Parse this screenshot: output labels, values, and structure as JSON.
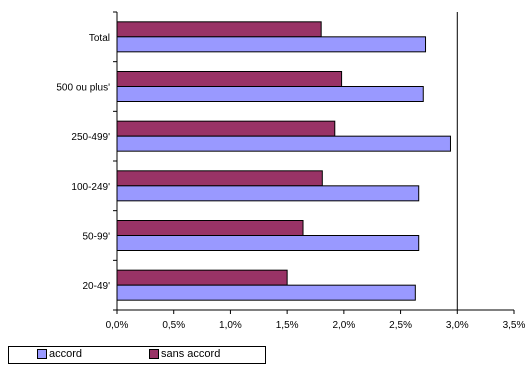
{
  "chart_data": {
    "type": "bar",
    "orientation": "horizontal",
    "categories": [
      "Total",
      "500 ou plus'",
      "250-499'",
      "100-249'",
      "50-99'",
      "20-49'"
    ],
    "series": [
      {
        "name": "sans accord",
        "color": "#993366",
        "values": [
          1.8,
          1.98,
          1.92,
          1.81,
          1.64,
          1.5
        ]
      },
      {
        "name": "accord",
        "color": "#9999ff",
        "values": [
          2.72,
          2.7,
          2.94,
          2.66,
          2.66,
          2.63
        ]
      }
    ],
    "x_ticks": [
      "0,0%",
      "0,5%",
      "1,0%",
      "1,5%",
      "2,0%",
      "2,5%",
      "3,0%",
      "3,5%"
    ],
    "xlim": [
      0,
      3.5
    ],
    "title": "",
    "xlabel": "",
    "ylabel": "",
    "gridlines": "vertical line at 3,0%",
    "legend_position": "bottom-left"
  },
  "legend": {
    "accord": "accord",
    "sans_accord": "sans accord"
  }
}
